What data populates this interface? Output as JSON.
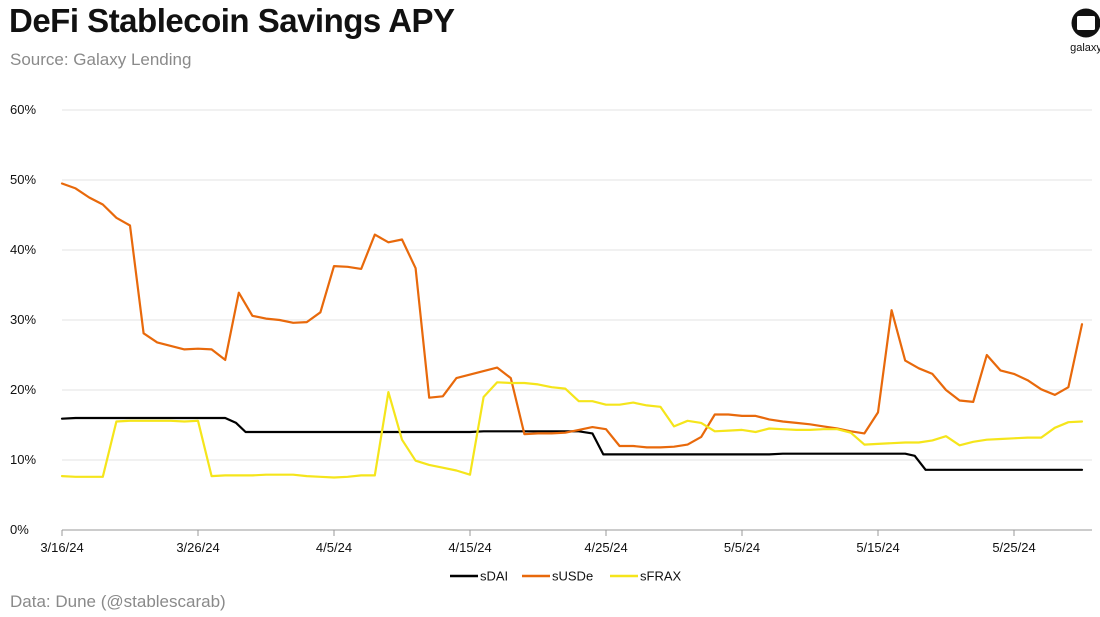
{
  "header": {
    "title": "DeFi Stablecoin Savings APY",
    "subtitle": "Source: Galaxy Lending"
  },
  "footer": {
    "note": "Data: Dune (@stablescarab)"
  },
  "logo": {
    "text": "galaxy",
    "icon": "galaxy-logo-icon"
  },
  "colors": {
    "sDAI": "#000000",
    "sUSDe": "#e8690b",
    "sFRAX": "#f5e51b",
    "grid": "#e3e3e3"
  },
  "chart_data": {
    "type": "line",
    "title": "DeFi Stablecoin Savings APY",
    "xlabel": "",
    "ylabel": "",
    "ylim": [
      0,
      60
    ],
    "yticks": [
      0,
      10,
      20,
      30,
      40,
      50,
      60
    ],
    "ytick_labels": [
      "0%",
      "10%",
      "20%",
      "30%",
      "40%",
      "50%",
      "60%"
    ],
    "xlim": [
      0,
      75
    ],
    "xticks": [
      0,
      10,
      20,
      30,
      40,
      50,
      60,
      70
    ],
    "xtick_labels": [
      "3/16/24",
      "3/26/24",
      "4/5/24",
      "4/15/24",
      "4/25/24",
      "5/5/24",
      "5/15/24",
      "5/25/24"
    ],
    "grid": true,
    "legend_position": "bottom-center",
    "series": [
      {
        "name": "sDAI",
        "color": "#000000",
        "points": [
          [
            0,
            15.9
          ],
          [
            1,
            16.0
          ],
          [
            5,
            16.0
          ],
          [
            10,
            16.0
          ],
          [
            12,
            16.0
          ],
          [
            12.8,
            15.3
          ],
          [
            13.5,
            14.0
          ],
          [
            20,
            14.0
          ],
          [
            25,
            14.0
          ],
          [
            30,
            14.0
          ],
          [
            31,
            14.1
          ],
          [
            38,
            14.1
          ],
          [
            39,
            13.8
          ],
          [
            39.8,
            10.8
          ],
          [
            45,
            10.8
          ],
          [
            52,
            10.8
          ],
          [
            53,
            10.9
          ],
          [
            58,
            10.9
          ],
          [
            62,
            10.9
          ],
          [
            62.7,
            10.6
          ],
          [
            63.5,
            8.6
          ],
          [
            68,
            8.6
          ],
          [
            75,
            8.6
          ]
        ]
      },
      {
        "name": "sUSDe",
        "color": "#e8690b",
        "points": [
          [
            0,
            49.5
          ],
          [
            1,
            48.8
          ],
          [
            2,
            47.5
          ],
          [
            3,
            46.5
          ],
          [
            4,
            44.6
          ],
          [
            5,
            43.5
          ],
          [
            6,
            28.1
          ],
          [
            7,
            26.8
          ],
          [
            8,
            26.3
          ],
          [
            9,
            25.8
          ],
          [
            10,
            25.9
          ],
          [
            11,
            25.8
          ],
          [
            12,
            24.3
          ],
          [
            13,
            33.9
          ],
          [
            14,
            30.6
          ],
          [
            15,
            30.2
          ],
          [
            16,
            30.0
          ],
          [
            17,
            29.6
          ],
          [
            18,
            29.7
          ],
          [
            19,
            31.1
          ],
          [
            20,
            37.7
          ],
          [
            21,
            37.6
          ],
          [
            22,
            37.3
          ],
          [
            23,
            42.2
          ],
          [
            24,
            41.1
          ],
          [
            25,
            41.5
          ],
          [
            26,
            37.4
          ],
          [
            27,
            18.9
          ],
          [
            28,
            19.1
          ],
          [
            29,
            21.7
          ],
          [
            30,
            22.2
          ],
          [
            31,
            22.7
          ],
          [
            32,
            23.2
          ],
          [
            33,
            21.7
          ],
          [
            34,
            13.7
          ],
          [
            35,
            13.8
          ],
          [
            36,
            13.8
          ],
          [
            37,
            13.9
          ],
          [
            38,
            14.3
          ],
          [
            39,
            14.7
          ],
          [
            40,
            14.4
          ],
          [
            41,
            12.0
          ],
          [
            42,
            12.0
          ],
          [
            43,
            11.8
          ],
          [
            44,
            11.8
          ],
          [
            45,
            11.9
          ],
          [
            46,
            12.2
          ],
          [
            47,
            13.3
          ],
          [
            48,
            16.5
          ],
          [
            49,
            16.5
          ],
          [
            50,
            16.3
          ],
          [
            51,
            16.3
          ],
          [
            52,
            15.8
          ],
          [
            53,
            15.5
          ],
          [
            54,
            15.3
          ],
          [
            55,
            15.1
          ],
          [
            56,
            14.8
          ],
          [
            57,
            14.5
          ],
          [
            58,
            14.1
          ],
          [
            59,
            13.8
          ],
          [
            60,
            16.8
          ],
          [
            61,
            31.4
          ],
          [
            62,
            24.2
          ],
          [
            63,
            23.1
          ],
          [
            64,
            22.3
          ],
          [
            65,
            20.0
          ],
          [
            66,
            18.5
          ],
          [
            67,
            18.3
          ],
          [
            68,
            25.0
          ],
          [
            69,
            22.8
          ],
          [
            70,
            22.3
          ],
          [
            71,
            21.4
          ],
          [
            72,
            20.1
          ],
          [
            73,
            19.3
          ],
          [
            74,
            20.4
          ],
          [
            75,
            29.4
          ]
        ]
      },
      {
        "name": "sFRAX",
        "color": "#f5e51b",
        "points": [
          [
            0,
            7.7
          ],
          [
            1,
            7.6
          ],
          [
            2,
            7.6
          ],
          [
            3,
            7.6
          ],
          [
            4,
            15.5
          ],
          [
            5,
            15.6
          ],
          [
            6,
            15.6
          ],
          [
            7,
            15.6
          ],
          [
            8,
            15.6
          ],
          [
            9,
            15.5
          ],
          [
            10,
            15.6
          ],
          [
            11,
            7.7
          ],
          [
            12,
            7.8
          ],
          [
            13,
            7.8
          ],
          [
            14,
            7.8
          ],
          [
            15,
            7.9
          ],
          [
            16,
            7.9
          ],
          [
            17,
            7.9
          ],
          [
            18,
            7.7
          ],
          [
            19,
            7.6
          ],
          [
            20,
            7.5
          ],
          [
            21,
            7.6
          ],
          [
            22,
            7.8
          ],
          [
            23,
            7.8
          ],
          [
            24,
            19.7
          ],
          [
            25,
            12.9
          ],
          [
            26,
            9.9
          ],
          [
            27,
            9.3
          ],
          [
            28,
            8.9
          ],
          [
            29,
            8.5
          ],
          [
            30,
            7.9
          ],
          [
            31,
            19.0
          ],
          [
            32,
            21.1
          ],
          [
            33,
            21.0
          ],
          [
            34,
            21.0
          ],
          [
            35,
            20.8
          ],
          [
            36,
            20.4
          ],
          [
            37,
            20.2
          ],
          [
            38,
            18.4
          ],
          [
            39,
            18.4
          ],
          [
            40,
            17.9
          ],
          [
            41,
            17.9
          ],
          [
            42,
            18.2
          ],
          [
            43,
            17.8
          ],
          [
            44,
            17.6
          ],
          [
            45,
            14.8
          ],
          [
            46,
            15.6
          ],
          [
            47,
            15.3
          ],
          [
            48,
            14.1
          ],
          [
            49,
            14.2
          ],
          [
            50,
            14.3
          ],
          [
            51,
            14.0
          ],
          [
            52,
            14.5
          ],
          [
            53,
            14.4
          ],
          [
            54,
            14.3
          ],
          [
            55,
            14.3
          ],
          [
            56,
            14.4
          ],
          [
            57,
            14.4
          ],
          [
            58,
            13.9
          ],
          [
            59,
            12.2
          ],
          [
            60,
            12.3
          ],
          [
            61,
            12.4
          ],
          [
            62,
            12.5
          ],
          [
            63,
            12.5
          ],
          [
            64,
            12.8
          ],
          [
            65,
            13.4
          ],
          [
            66,
            12.1
          ],
          [
            67,
            12.6
          ],
          [
            68,
            12.9
          ],
          [
            69,
            13.0
          ],
          [
            70,
            13.1
          ],
          [
            71,
            13.2
          ],
          [
            72,
            13.2
          ],
          [
            73,
            14.6
          ],
          [
            74,
            15.4
          ],
          [
            75,
            15.5
          ]
        ]
      }
    ]
  }
}
